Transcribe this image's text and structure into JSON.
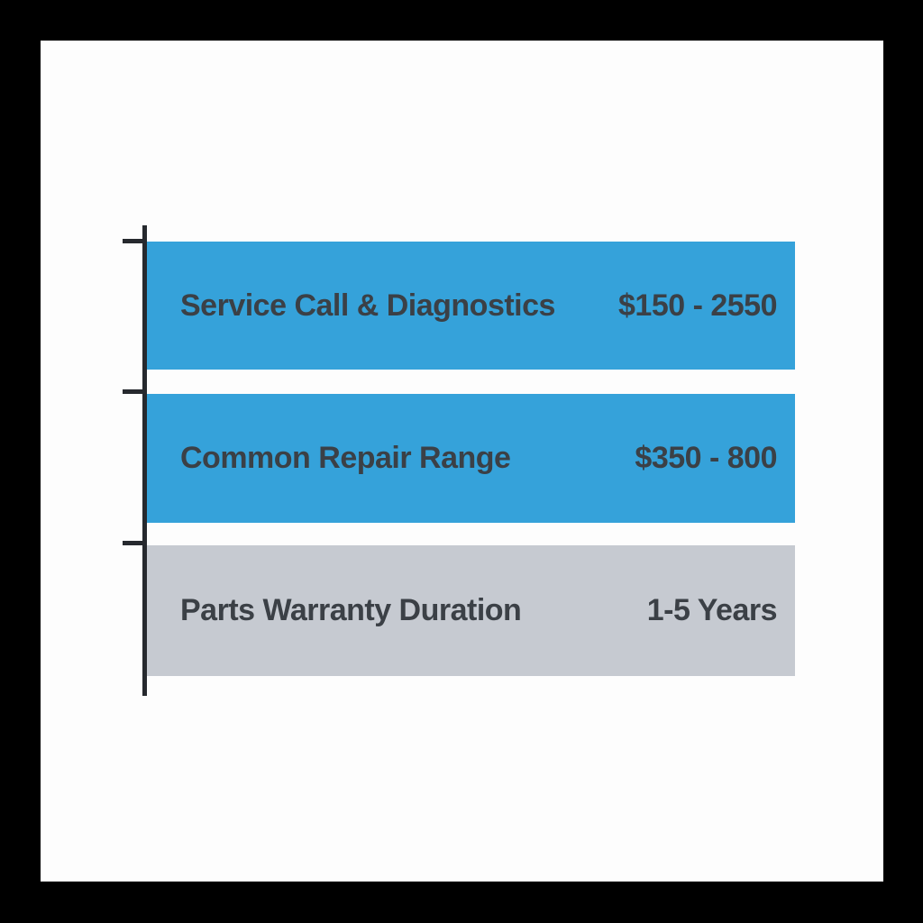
{
  "chart_data": {
    "type": "table",
    "rows": [
      {
        "label": "Service Call & Diagnostics",
        "value": "$150 - 2550",
        "color": "#35a2da"
      },
      {
        "label": "Common Repair Range",
        "value": "$350 - 800",
        "color": "#35a2da"
      },
      {
        "label": "Parts Warranty Duration",
        "value": "1-5 Years",
        "color": "#c6cad1"
      }
    ],
    "layout_hints": {
      "orientation": "horizontal-rows",
      "axis_side": "left",
      "grid": false,
      "legend": "none"
    }
  },
  "colors": {
    "bar_blue": "#35a2da",
    "bar_gray": "#c6cad1",
    "axis": "#26292e",
    "text": "#3b4046",
    "canvas_bg": "#fdfdfd",
    "frame": "#000000"
  }
}
